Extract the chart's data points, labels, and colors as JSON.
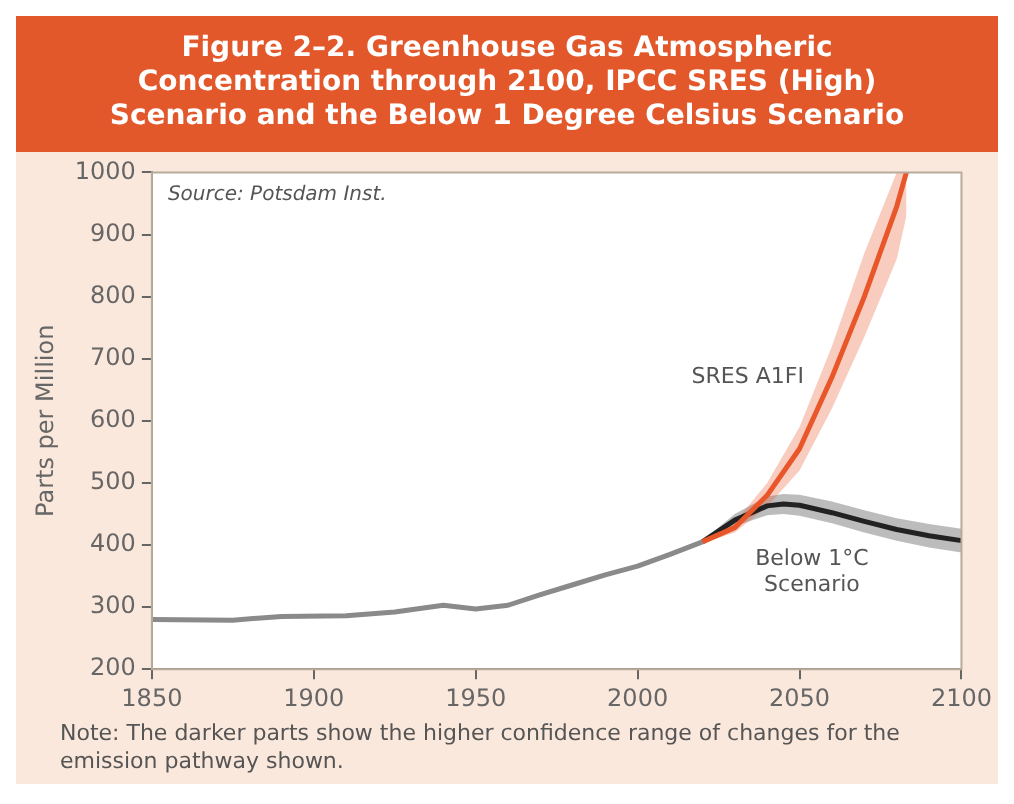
{
  "chart_data": {
    "type": "line",
    "title": "Figure 2–2. Greenhouse Gas Atmospheric Concentration through 2100, IPCC SRES (High) Scenario and the Below 1 Degree Celsius Scenario",
    "ylabel": "Parts per Million",
    "annotations": [
      "Source: Potsdam Inst.",
      "Note: The darker parts show the higher confidence range of changes for the emission pathway shown."
    ],
    "xlim": [
      1850,
      2100
    ],
    "xticks": [
      1850,
      1900,
      1950,
      2000,
      2050,
      2100
    ],
    "ylim": [
      200,
      1000
    ],
    "yticks": [
      200,
      300,
      400,
      500,
      600,
      700,
      800,
      900,
      1000
    ],
    "grid": false,
    "legend": false,
    "series": [
      {
        "color": "#8a8a8a",
        "x": [
          1850,
          1875,
          1890,
          1910,
          1925,
          1940,
          1950,
          1960,
          1970,
          1980,
          1990,
          2000,
          2010,
          2020
        ],
        "values": [
          280,
          279,
          285,
          286,
          292,
          303,
          297,
          303,
          320,
          336,
          352,
          366,
          385,
          405
        ]
      },
      {
        "name": "SRES A1FI",
        "color": "#e8562a",
        "x": [
          2020,
          2030,
          2040,
          2050,
          2060,
          2070,
          2080,
          2083
        ],
        "values": [
          405,
          428,
          480,
          555,
          670,
          800,
          945,
          1000
        ],
        "lower": [
          403,
          420,
          462,
          520,
          620,
          735,
          860,
          930
        ],
        "upper": [
          407,
          436,
          500,
          590,
          720,
          870,
          1000,
          1000
        ]
      },
      {
        "name": "Below 1°C Scenario",
        "color": "#222222",
        "x": [
          2020,
          2030,
          2040,
          2045,
          2050,
          2060,
          2070,
          2080,
          2090,
          2100
        ],
        "values": [
          405,
          440,
          463,
          466,
          464,
          452,
          438,
          425,
          415,
          407
        ],
        "lower": [
          403,
          430,
          448,
          450,
          447,
          435,
          420,
          407,
          396,
          388
        ],
        "upper": [
          407,
          450,
          478,
          482,
          481,
          470,
          456,
          443,
          434,
          426
        ]
      }
    ]
  }
}
